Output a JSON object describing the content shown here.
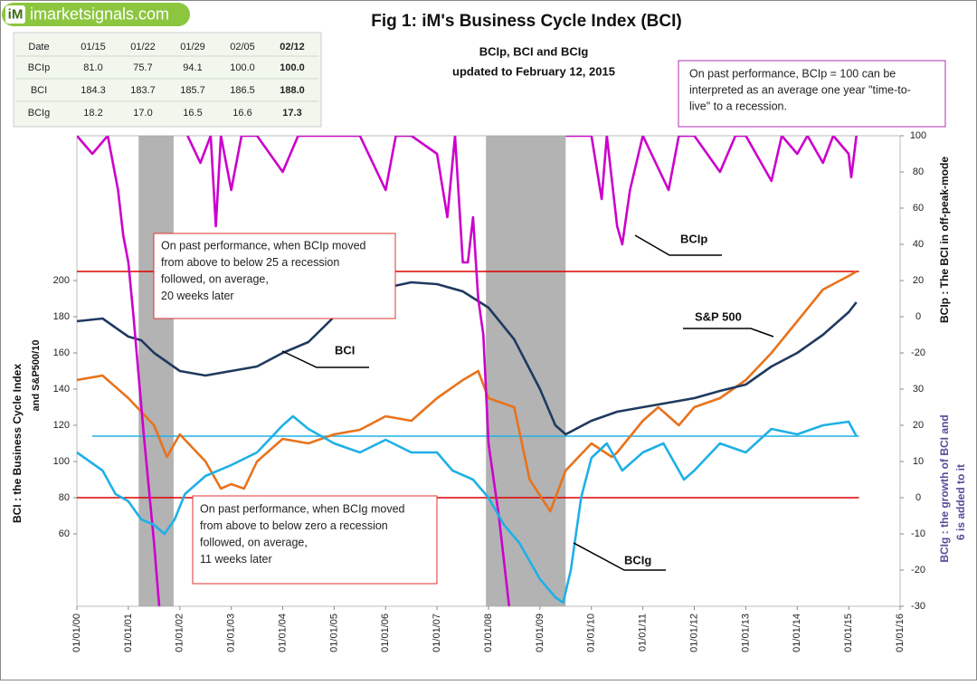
{
  "logo": "imarketsignals.com",
  "table": {
    "header": [
      "Date",
      "01/15",
      "01/22",
      "01/29",
      "02/05",
      "02/12"
    ],
    "rows": [
      [
        "BCIp",
        "81.0",
        "75.7",
        "94.1",
        "100.0",
        "100.0"
      ],
      [
        "BCI",
        "184.3",
        "183.7",
        "185.7",
        "186.5",
        "188.0"
      ],
      [
        "BCIg",
        "18.2",
        "17.0",
        "16.5",
        "16.6",
        "17.3"
      ]
    ]
  },
  "chart_data": {
    "type": "line",
    "title": "Fig 1:  iM's Business Cycle Index (BCI)",
    "subtitle": [
      "BCIp, BCI and BCIg",
      "updated to February 12, 2015"
    ],
    "note": [
      "On past performance, BCIp = 100 can be",
      "interpreted as an average one year \"time-to-",
      "live\" to a recession."
    ],
    "ylabel": [
      "BCI : the Business  Cycle  Index",
      "and   S&P500/10"
    ],
    "y2label": "BCIp :  The BCI in off-peak-mode",
    "y3label": [
      "BCIg :  the growth of BCI and",
      "6 is added to it"
    ],
    "xlim": [
      2000,
      2016
    ],
    "xticks": [
      {
        "value": 2000,
        "label": "01/01/00"
      },
      {
        "value": 2001,
        "label": "01/01/01"
      },
      {
        "value": 2002,
        "label": "01/01/02"
      },
      {
        "value": 2003,
        "label": "01/01/03"
      },
      {
        "value": 2004,
        "label": "01/01/04"
      },
      {
        "value": 2005,
        "label": "01/01/05"
      },
      {
        "value": 2006,
        "label": "01/01/06"
      },
      {
        "value": 2007,
        "label": "01/01/07"
      },
      {
        "value": 2008,
        "label": "01/01/08"
      },
      {
        "value": 2009,
        "label": "01/01/09"
      },
      {
        "value": 2010,
        "label": "01/01/10"
      },
      {
        "value": 2011,
        "label": "01/01/11"
      },
      {
        "value": 2012,
        "label": "01/01/12"
      },
      {
        "value": 2013,
        "label": "01/01/13"
      },
      {
        "value": 2014,
        "label": "01/01/14"
      },
      {
        "value": 2015,
        "label": "01/01/15"
      },
      {
        "value": 2016,
        "label": "01/01/16"
      }
    ],
    "ylim": [
      20,
      280
    ],
    "yticks": [
      60,
      80,
      100,
      120,
      140,
      160,
      180,
      200
    ],
    "y2lim": [
      -160,
      100
    ],
    "y2ticks": [
      -20,
      0,
      20,
      40,
      60,
      80,
      100
    ],
    "y3lim": [
      -30,
      100
    ],
    "y3ticks": [
      -30,
      -20,
      -10,
      0,
      10,
      20,
      30
    ],
    "shaded_regions": [
      [
        2001.2,
        2001.88
      ],
      [
        2007.95,
        2009.5
      ]
    ],
    "shade_color": "#a6a6a6",
    "reference_lines": [
      {
        "axis": "y2",
        "value": 25,
        "color": "#e00000",
        "x": [
          2000,
          2015.2
        ]
      },
      {
        "axis": "y3",
        "value": 0,
        "color": "#e00000",
        "x": [
          2000,
          2015.2
        ]
      },
      {
        "axis": "y3",
        "value": 17,
        "color": "#1fb0e6",
        "x": [
          2000.3,
          2015.2
        ]
      }
    ],
    "series": [
      {
        "name": "S&P 500",
        "color": "#e8731c",
        "axis": "y",
        "x": [
          2000,
          2000.5,
          2001,
          2001.5,
          2001.75,
          2002,
          2002.5,
          2002.8,
          2003,
          2003.25,
          2003.5,
          2004,
          2004.5,
          2005,
          2005.5,
          2006,
          2006.5,
          2007,
          2007.5,
          2007.8,
          2008,
          2008.5,
          2008.8,
          2009.2,
          2009.5,
          2010,
          2010.4,
          2010.5,
          2011,
          2011.3,
          2011.7,
          2012,
          2012.5,
          2013,
          2013.5,
          2014,
          2014.5,
          2015,
          2015.15
        ],
        "values": [
          145,
          147.5,
          135,
          120,
          102.5,
          115,
          100,
          85,
          87.5,
          85,
          100,
          112.5,
          110,
          115,
          117.5,
          125,
          122.5,
          135,
          145,
          150,
          135,
          130,
          90,
          72.5,
          95,
          110,
          102.5,
          105,
          122.5,
          130,
          120,
          130,
          135,
          145,
          160,
          177.5,
          195,
          202.5,
          205
        ]
      },
      {
        "name": "BCI",
        "color": "#1f3a5f",
        "axis": "y",
        "x": [
          2000,
          2000.5,
          2001,
          2001.25,
          2001.5,
          2002,
          2002.5,
          2003,
          2003.5,
          2004,
          2004.5,
          2005,
          2005.5,
          2006,
          2006.5,
          2007,
          2007.5,
          2008,
          2008.5,
          2009,
          2009.3,
          2009.5,
          2010,
          2010.5,
          2011,
          2011.5,
          2012,
          2012.5,
          2013,
          2013.5,
          2014,
          2014.5,
          2015,
          2015.15
        ],
        "values": [
          177.5,
          179,
          169,
          167,
          160,
          150,
          147.5,
          150,
          152.5,
          160,
          166,
          180,
          190,
          196,
          199,
          198,
          194,
          185,
          167.5,
          140,
          120,
          115,
          122.5,
          127.5,
          130,
          132.5,
          135,
          139,
          142.5,
          152.5,
          160,
          170,
          182.5,
          188
        ]
      },
      {
        "name": "BCIp",
        "color": "#cc00cc",
        "axis": "y2",
        "x": [
          2000,
          2000.3,
          2000.6,
          2000.8,
          2000.9,
          2001,
          2001.1,
          2001.3,
          2001.5,
          2001.6,
          2001.9,
          2002.15,
          2002.4,
          2002.6,
          2002.7,
          2002.8,
          2003,
          2003.2,
          2003.5,
          2004,
          2004.3,
          2005,
          2005.5,
          2006,
          2006.2,
          2006.5,
          2007,
          2007.2,
          2007.35,
          2007.5,
          2007.6,
          2007.7,
          2007.8,
          2007.9,
          2008,
          2008.2,
          2008.4,
          2009,
          2009.5,
          2010,
          2010.2,
          2010.3,
          2010.5,
          2010.6,
          2010.75,
          2011,
          2011.5,
          2011.7,
          2012,
          2012.5,
          2012.8,
          2013,
          2013.5,
          2013.7,
          2014,
          2014.2,
          2014.5,
          2014.7,
          2015,
          2015.05,
          2015.15
        ],
        "values": [
          100,
          90,
          100,
          70,
          45,
          30,
          0,
          -65,
          -125,
          -160,
          null,
          100,
          85,
          100,
          50,
          100,
          70,
          100,
          100,
          80,
          100,
          100,
          100,
          70,
          100,
          100,
          90,
          55,
          100,
          30,
          30,
          55,
          10,
          -10,
          -70,
          -110,
          -160,
          null,
          100,
          100,
          65,
          100,
          50,
          40,
          70,
          100,
          70,
          100,
          100,
          80,
          100,
          100,
          75,
          100,
          90,
          100,
          85,
          100,
          90,
          77,
          100
        ]
      },
      {
        "name": "BCIg",
        "color": "#1fb0e6",
        "axis": "y3",
        "x": [
          2000,
          2000.25,
          2000.5,
          2000.75,
          2001,
          2001.25,
          2001.5,
          2001.7,
          2001.9,
          2002.1,
          2002.5,
          2003,
          2003.5,
          2004,
          2004.2,
          2004.5,
          2005,
          2005.5,
          2006,
          2006.5,
          2007,
          2007.3,
          2007.7,
          2008,
          2008.3,
          2008.6,
          2009,
          2009.3,
          2009.45,
          2009.6,
          2009.8,
          2010,
          2010.3,
          2010.6,
          2011,
          2011.4,
          2011.8,
          2012,
          2012.5,
          2013,
          2013.5,
          2014,
          2014.5,
          2015,
          2015.15
        ],
        "values": [
          12.5,
          10,
          7.5,
          1,
          -1,
          -6,
          -7.5,
          -10,
          -6,
          1,
          6,
          9,
          12.5,
          20,
          22.5,
          19,
          15,
          12.5,
          16,
          12.5,
          12.5,
          7.5,
          5,
          0,
          -7.5,
          -12.5,
          -22.5,
          -27.5,
          -29,
          -20,
          0,
          11,
          15,
          7.5,
          12.5,
          15,
          5,
          7.5,
          15,
          12.5,
          19,
          17.5,
          20,
          21,
          17
        ]
      }
    ],
    "annotations": [
      {
        "lines": [
          "On past performance,  when BCIp moved",
          "from above to below 25 a recession",
          "followed, on average,",
          "20 weeks later"
        ]
      },
      {
        "lines": [
          "On past performance,  when BCIg moved",
          "from above to below zero a recession",
          "followed, on average,",
          "11 weeks later"
        ]
      }
    ],
    "arrow_labels": [
      "BCIp",
      "BCI",
      "S&P 500",
      "BCIg"
    ]
  }
}
